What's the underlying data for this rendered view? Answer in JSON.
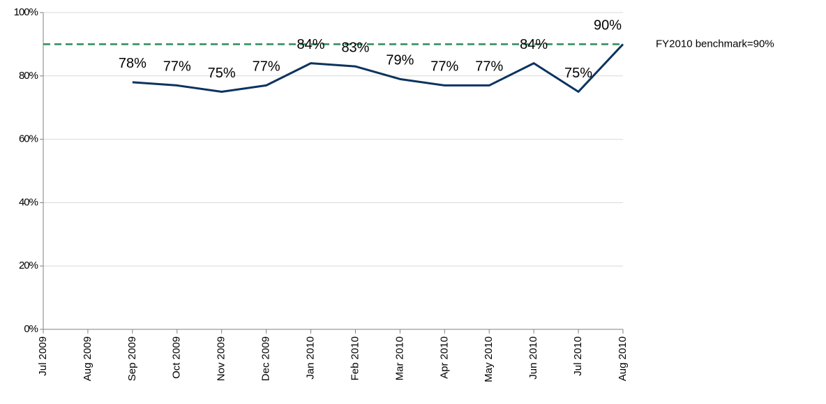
{
  "chart_data": {
    "type": "line",
    "categories": [
      "Jul 2009",
      "Aug 2009",
      "Sep 2009",
      "Oct 2009",
      "Nov 2009",
      "Dec 2009",
      "Jan 2010",
      "Feb 2010",
      "Mar 2010",
      "Apr 2010",
      "May 2010",
      "Jun 2010",
      "Jul 2010",
      "Aug 2010"
    ],
    "series": [
      {
        "color": "#0b3360",
        "values": [
          null,
          null,
          78,
          77,
          75,
          77,
          84,
          83,
          79,
          77,
          77,
          84,
          75,
          90
        ],
        "value_labels": [
          null,
          null,
          "78%",
          "77%",
          "75%",
          "77%",
          "84%",
          "83%",
          "79%",
          "77%",
          "77%",
          "84%",
          "75%",
          "90%"
        ]
      }
    ],
    "benchmark": {
      "value": 90,
      "label": "FY2010 benchmark=90%",
      "color": "#2e8b57"
    },
    "ylim": [
      0,
      100
    ],
    "yticks": [
      {
        "value": 0,
        "label": "0%"
      },
      {
        "value": 20,
        "label": "20%"
      },
      {
        "value": 40,
        "label": "40%"
      },
      {
        "value": 60,
        "label": "60%"
      },
      {
        "value": 80,
        "label": "80%"
      },
      {
        "value": 100,
        "label": "100%"
      }
    ],
    "grid": true
  }
}
